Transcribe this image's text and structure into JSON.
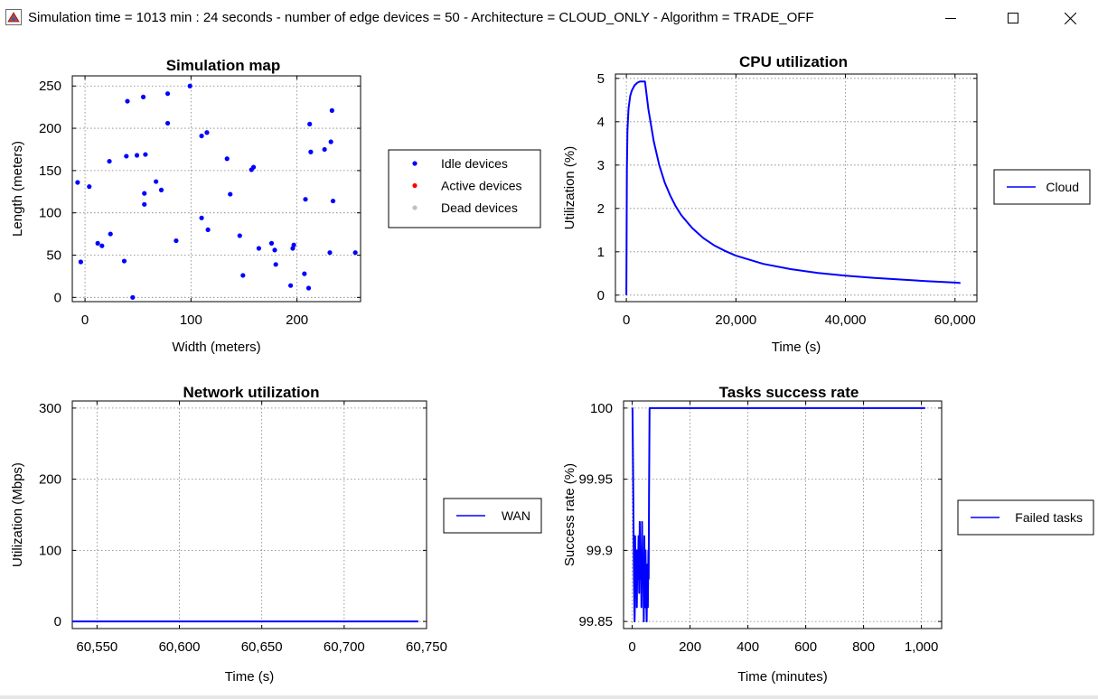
{
  "window": {
    "title": "Simulation time = 1013 min : 24 seconds  -  number of edge devices = 50 -  Architecture = CLOUD_ONLY -  Algorithm = TRADE_OFF",
    "icons": {
      "app": "java-app-icon",
      "minimize": "minimize-icon",
      "maximize": "maximize-icon",
      "close": "close-icon"
    }
  },
  "colors": {
    "series": "#0000ff",
    "idle": "#0000ff",
    "active": "#ff0000",
    "dead": "#c0c0c0",
    "grid": "#7f7f7f"
  },
  "chart_data": [
    {
      "id": "map",
      "type": "scatter",
      "title": "Simulation map",
      "xlabel": "Width (meters)",
      "ylabel": "Length (meters)",
      "xlim": [
        -12,
        260
      ],
      "ylim": [
        -5,
        262
      ],
      "xticks": [
        0,
        100,
        200
      ],
      "xtick_labels": [
        "0",
        "100",
        "200"
      ],
      "yticks": [
        0,
        50,
        100,
        150,
        200,
        250
      ],
      "ytick_labels": [
        "0",
        "50",
        "100",
        "150",
        "200",
        "250"
      ],
      "grid": true,
      "legend_position": "right",
      "series": [
        {
          "name": "Idle devices",
          "points": [
            [
              -7,
              136
            ],
            [
              4,
              131
            ],
            [
              -4,
              42
            ],
            [
              12,
              64
            ],
            [
              16,
              61
            ],
            [
              23,
              161
            ],
            [
              24,
              75
            ],
            [
              37,
              43
            ],
            [
              39,
              167
            ],
            [
              40,
              232
            ],
            [
              45,
              0
            ],
            [
              49,
              168
            ],
            [
              55,
              237
            ],
            [
              56,
              110
            ],
            [
              56,
              123
            ],
            [
              57,
              169
            ],
            [
              67,
              137
            ],
            [
              72,
              127
            ],
            [
              78,
              241
            ],
            [
              78,
              206
            ],
            [
              86,
              67
            ],
            [
              99,
              250
            ],
            [
              110,
              94
            ],
            [
              110,
              191
            ],
            [
              115,
              195
            ],
            [
              116,
              80
            ],
            [
              134,
              164
            ],
            [
              137,
              122
            ],
            [
              146,
              73
            ],
            [
              149,
              26
            ],
            [
              157,
              151
            ],
            [
              159,
              154
            ],
            [
              164,
              58
            ],
            [
              176,
              64
            ],
            [
              179,
              56
            ],
            [
              180,
              39
            ],
            [
              194,
              14
            ],
            [
              196,
              58
            ],
            [
              197,
              62
            ],
            [
              207,
              28
            ],
            [
              208,
              116
            ],
            [
              211,
              11
            ],
            [
              212,
              205
            ],
            [
              213,
              172
            ],
            [
              226,
              175
            ],
            [
              231,
              53
            ],
            [
              232,
              184
            ],
            [
              233,
              221
            ],
            [
              234,
              114
            ],
            [
              255,
              53
            ]
          ]
        },
        {
          "name": "Active devices",
          "points": []
        },
        {
          "name": "Dead devices",
          "points": []
        }
      ]
    },
    {
      "id": "cpu",
      "type": "line",
      "title": "CPU utilization",
      "xlabel": "Time (s)",
      "ylabel": "Utilization (%)",
      "xlim": [
        -2000,
        64000
      ],
      "ylim": [
        -0.15,
        5.1
      ],
      "xticks": [
        0,
        20000,
        40000,
        60000
      ],
      "xtick_labels": [
        "0",
        "20,000",
        "40,000",
        "60,000"
      ],
      "yticks": [
        0,
        1,
        2,
        3,
        4,
        5
      ],
      "ytick_labels": [
        "0",
        "1",
        "2",
        "3",
        "4",
        "5"
      ],
      "grid": true,
      "legend_position": "right",
      "series": [
        {
          "name": "Cloud",
          "x": [
            0,
            100,
            200,
            400,
            700,
            1000,
            1500,
            2000,
            2500,
            3000,
            3400,
            4000,
            5000,
            6000,
            7000,
            8000,
            9000,
            10000,
            12000,
            14000,
            16000,
            18000,
            20000,
            25000,
            30000,
            35000,
            40000,
            45000,
            50000,
            55000,
            60000,
            61000
          ],
          "y": [
            0,
            2.9,
            3.8,
            4.3,
            4.6,
            4.72,
            4.84,
            4.9,
            4.93,
            4.93,
            4.93,
            4.3,
            3.55,
            3.0,
            2.6,
            2.3,
            2.05,
            1.85,
            1.55,
            1.32,
            1.15,
            1.02,
            0.91,
            0.72,
            0.6,
            0.51,
            0.45,
            0.4,
            0.36,
            0.32,
            0.29,
            0.28
          ]
        }
      ]
    },
    {
      "id": "network",
      "type": "line",
      "title": "Network utilization",
      "xlabel": "Time (s)",
      "ylabel": "Utilization (Mbps)",
      "xlim": [
        60535,
        60750
      ],
      "ylim": [
        -10,
        310
      ],
      "xticks": [
        60550,
        60600,
        60650,
        60700,
        60750
      ],
      "xtick_labels": [
        "60,550",
        "60,600",
        "60,650",
        "60,700",
        "60,750"
      ],
      "yticks": [
        0,
        100,
        200,
        300
      ],
      "ytick_labels": [
        "0",
        "100",
        "200",
        "300"
      ],
      "grid": true,
      "legend_position": "right",
      "series": [
        {
          "name": "WAN",
          "x": [
            60535,
            60745
          ],
          "y": [
            0,
            0
          ]
        }
      ]
    },
    {
      "id": "success",
      "type": "line",
      "title": "Tasks success rate",
      "xlabel": "Time (minutes)",
      "ylabel": "Success rate (%)",
      "xlim": [
        -30,
        1070
      ],
      "ylim": [
        99.845,
        100.005
      ],
      "xticks": [
        0,
        200,
        400,
        600,
        800,
        1000
      ],
      "xtick_labels": [
        "0",
        "200",
        "400",
        "600",
        "800",
        "1,000"
      ],
      "yticks": [
        99.85,
        99.9,
        99.95,
        100
      ],
      "ytick_labels": [
        "99.85",
        "99.9",
        "99.95",
        "100"
      ],
      "grid": true,
      "legend_position": "right",
      "series": [
        {
          "name": "Failed tasks",
          "x": [
            0,
            1,
            2,
            4,
            6,
            8,
            9,
            10,
            12,
            14,
            16,
            18,
            20,
            22,
            24,
            26,
            28,
            30,
            32,
            34,
            36,
            38,
            40,
            42,
            44,
            46,
            48,
            50,
            52,
            54,
            56,
            57,
            58,
            60,
            62,
            65,
            100,
            200,
            400,
            600,
            800,
            1013
          ],
          "y": [
            100,
            100,
            99.98,
            99.93,
            99.88,
            99.85,
            99.86,
            99.91,
            99.87,
            99.9,
            99.86,
            99.9,
            99.88,
            99.91,
            99.87,
            99.92,
            99.88,
            99.9,
            99.86,
            99.92,
            99.88,
            99.89,
            99.85,
            99.91,
            99.86,
            99.9,
            99.87,
            99.85,
            99.89,
            99.86,
            99.9,
            99.88,
            99.94,
            100,
            100,
            100,
            100,
            100,
            100,
            100,
            100,
            100
          ]
        }
      ]
    }
  ]
}
